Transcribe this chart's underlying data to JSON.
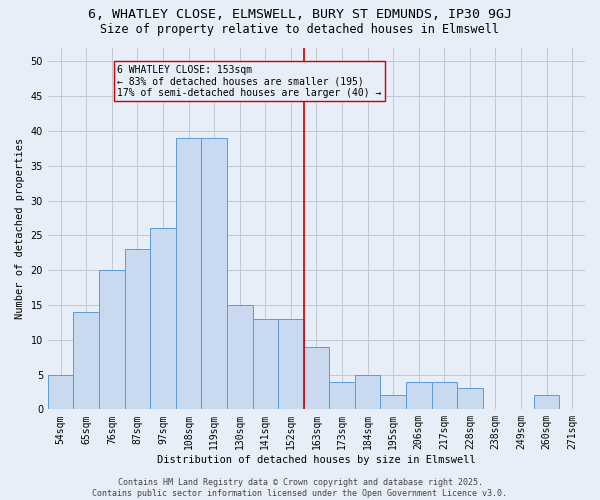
{
  "title1": "6, WHATLEY CLOSE, ELMSWELL, BURY ST EDMUNDS, IP30 9GJ",
  "title2": "Size of property relative to detached houses in Elmswell",
  "xlabel": "Distribution of detached houses by size in Elmswell",
  "ylabel": "Number of detached properties",
  "categories": [
    "54sqm",
    "65sqm",
    "76sqm",
    "87sqm",
    "97sqm",
    "108sqm",
    "119sqm",
    "130sqm",
    "141sqm",
    "152sqm",
    "163sqm",
    "173sqm",
    "184sqm",
    "195sqm",
    "206sqm",
    "217sqm",
    "228sqm",
    "238sqm",
    "249sqm",
    "260sqm",
    "271sqm"
  ],
  "values": [
    5,
    14,
    20,
    23,
    26,
    39,
    39,
    15,
    13,
    13,
    9,
    4,
    5,
    2,
    4,
    4,
    3,
    0,
    0,
    2,
    0
  ],
  "bar_color": "#c8d9f0",
  "bar_edge_color": "#5b9bd5",
  "vline_x": 9.5,
  "vline_color": "#cc0000",
  "annotation_text": "6 WHATLEY CLOSE: 153sqm\n← 83% of detached houses are smaller (195)\n17% of semi-detached houses are larger (40) →",
  "annotation_box_color": "#cc0000",
  "ylim": [
    0,
    52
  ],
  "yticks": [
    0,
    5,
    10,
    15,
    20,
    25,
    30,
    35,
    40,
    45,
    50
  ],
  "grid_color": "#c0c8d8",
  "background_color": "#e8eef8",
  "footer_text": "Contains HM Land Registry data © Crown copyright and database right 2025.\nContains public sector information licensed under the Open Government Licence v3.0.",
  "title1_fontsize": 9.5,
  "title2_fontsize": 8.5,
  "annotation_fontsize": 7,
  "footer_fontsize": 6,
  "axis_label_fontsize": 7.5,
  "tick_fontsize": 7
}
